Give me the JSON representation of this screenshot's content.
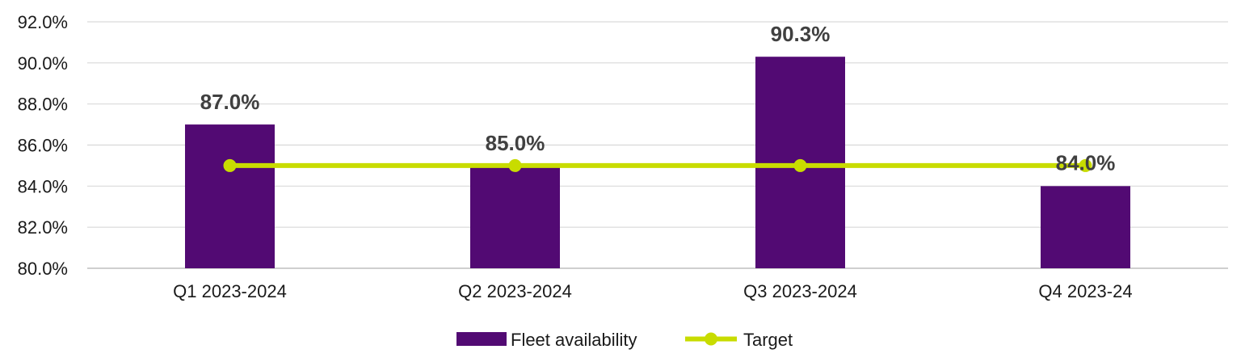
{
  "chart_data": {
    "type": "bar",
    "title": "",
    "xlabel": "",
    "ylabel": "",
    "categories": [
      "Q1 2023-2024",
      "Q2 2023-2024",
      "Q3 2023-2024",
      "Q4 2023-24"
    ],
    "series": [
      {
        "name": "Fleet availability",
        "kind": "bar",
        "color": "#520a73",
        "values": [
          87.0,
          85.0,
          90.3,
          84.0
        ],
        "labels": [
          "87.0%",
          "85.0%",
          "90.3%",
          "84.0%"
        ]
      },
      {
        "name": "Target",
        "kind": "line",
        "color": "#c8dc00",
        "values": [
          85.0,
          85.0,
          85.0,
          85.0
        ]
      }
    ],
    "ylim": [
      80.0,
      92.0
    ],
    "yticks": [
      80.0,
      82.0,
      84.0,
      86.0,
      88.0,
      90.0,
      92.0
    ],
    "ytick_labels": [
      "80.0%",
      "82.0%",
      "84.0%",
      "86.0%",
      "88.0%",
      "90.0%",
      "92.0%"
    ],
    "grid": true,
    "legend_position": "bottom-center"
  }
}
